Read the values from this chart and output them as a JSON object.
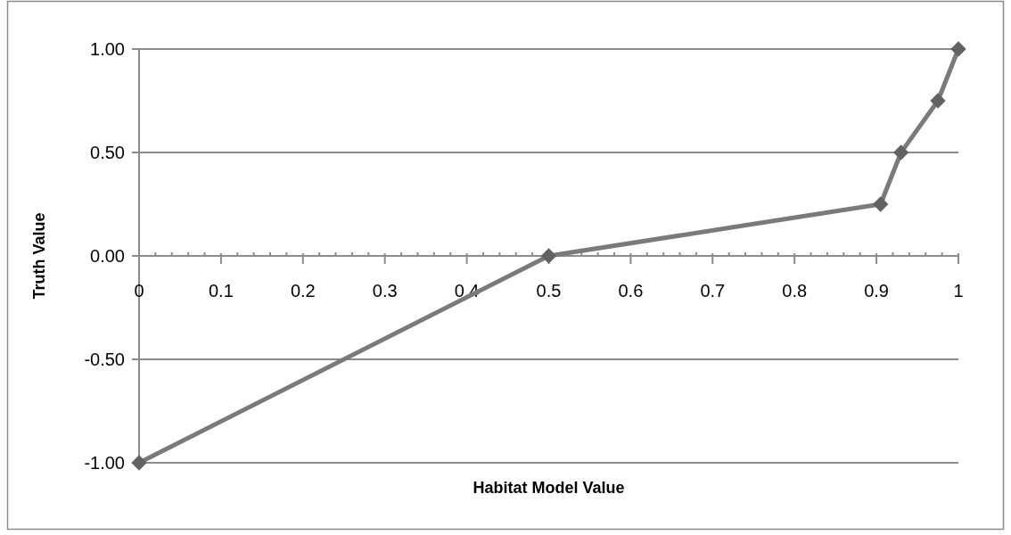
{
  "chart_data": {
    "type": "line",
    "xlabel": "Habitat Model Value",
    "ylabel": "Truth Value",
    "series": [
      {
        "color": "#7a7a7a",
        "x": [
          0,
          0.5,
          0.905,
          0.93,
          0.975,
          1
        ],
        "values": [
          -1,
          0,
          0.25,
          0.5,
          0.75,
          1
        ]
      }
    ],
    "xlim": [
      0,
      1
    ],
    "xticks": [
      0,
      {
        "value": 0.02,
        "label": null
      },
      {
        "value": 0.04,
        "label": null
      },
      {
        "value": 0.06,
        "label": null
      },
      {
        "value": 0.08,
        "label": null
      },
      0.1,
      {
        "value": 0.12,
        "label": null
      },
      {
        "value": 0.14,
        "label": null
      },
      {
        "value": 0.16,
        "label": null
      },
      {
        "value": 0.18,
        "label": null
      },
      0.2,
      {
        "value": 0.22,
        "label": null
      },
      {
        "value": 0.24,
        "label": null
      },
      {
        "value": 0.26,
        "label": null
      },
      {
        "value": 0.28,
        "label": null
      },
      0.3,
      {
        "value": 0.32,
        "label": null
      },
      {
        "value": 0.34,
        "label": null
      },
      {
        "value": 0.36,
        "label": null
      },
      {
        "value": 0.38,
        "label": null
      },
      0.4,
      {
        "value": 0.42,
        "label": null
      },
      {
        "value": 0.44,
        "label": null
      },
      {
        "value": 0.46,
        "label": null
      },
      {
        "value": 0.48,
        "label": null
      },
      0.5,
      {
        "value": 0.52,
        "label": null
      },
      {
        "value": 0.54,
        "label": null
      },
      {
        "value": 0.56,
        "label": null
      },
      {
        "value": 0.58,
        "label": null
      },
      0.6,
      {
        "value": 0.62,
        "label": null
      },
      {
        "value": 0.64,
        "label": null
      },
      {
        "value": 0.66,
        "label": null
      },
      {
        "value": 0.68,
        "label": null
      },
      0.7,
      {
        "value": 0.72,
        "label": null
      },
      {
        "value": 0.74,
        "label": null
      },
      {
        "value": 0.76,
        "label": null
      },
      {
        "value": 0.78,
        "label": null
      },
      0.8,
      {
        "value": 0.82,
        "label": null
      },
      {
        "value": 0.84,
        "label": null
      },
      {
        "value": 0.86,
        "label": null
      },
      {
        "value": 0.88,
        "label": null
      },
      0.9,
      {
        "value": 0.92,
        "label": null
      },
      {
        "value": 0.94,
        "label": null
      },
      {
        "value": 0.96,
        "label": null
      },
      {
        "value": 0.98,
        "label": null
      },
      1
    ],
    "ylim": [
      -1,
      1
    ],
    "yticks": [
      {
        "value": -1,
        "label": "-1.00"
      },
      {
        "value": -0.5,
        "label": "-0.50"
      },
      {
        "value": 0,
        "label": "0.00"
      },
      {
        "value": 0.5,
        "label": "0.50"
      },
      {
        "value": 1,
        "label": "1.00"
      }
    ],
    "grid": "y",
    "marker": "diamond",
    "line_style": "solid"
  }
}
